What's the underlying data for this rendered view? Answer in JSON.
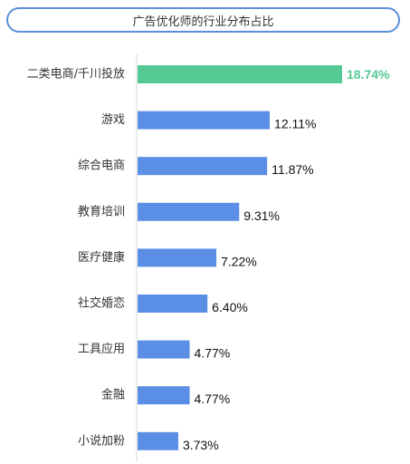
{
  "chart_data": {
    "type": "bar",
    "orientation": "horizontal",
    "title": "广告优化师的行业分布占比",
    "categories": [
      "二类电商/千川投放",
      "游戏",
      "综合电商",
      "教育培训",
      "医疗健康",
      "社交婚恋",
      "工具应用",
      "金融",
      "小说加粉"
    ],
    "values": [
      18.74,
      12.11,
      11.87,
      9.31,
      7.22,
      6.4,
      4.77,
      4.77,
      3.73
    ],
    "labels": [
      "18.74%",
      "12.11%",
      "11.87%",
      "9.31%",
      "7.22%",
      "6.40%",
      "4.77%",
      "4.77%",
      "3.73%"
    ],
    "highlight_index": 0,
    "colors": {
      "highlight": "#55c994",
      "default": "#5b8fe6",
      "axis": "#d9d9d9",
      "category_text": "#333333",
      "value_text": "#111111",
      "title_border": "#5b8fdc"
    },
    "xlim": [
      0,
      18.74
    ],
    "grid": false,
    "legend": "none"
  }
}
